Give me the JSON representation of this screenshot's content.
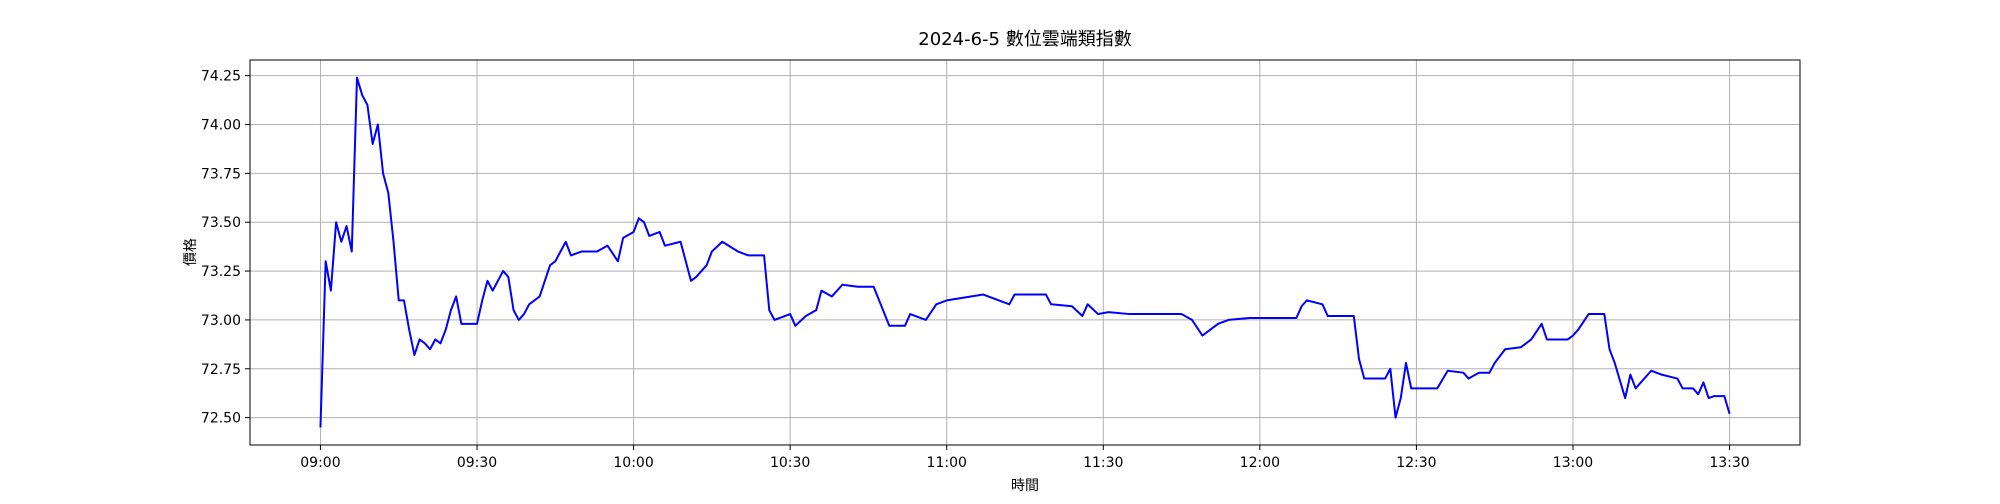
{
  "chart_data": {
    "type": "line",
    "title": "2024-6-5 數位雲端類指數",
    "x_label": "時間",
    "y_label": "價格",
    "x": [
      "09:00",
      "09:01",
      "09:02",
      "09:03",
      "09:04",
      "09:05",
      "09:06",
      "09:07",
      "09:08",
      "09:09",
      "09:10",
      "09:11",
      "09:12",
      "09:13",
      "09:14",
      "09:15",
      "09:16",
      "09:17",
      "09:18",
      "09:19",
      "09:20",
      "09:21",
      "09:22",
      "09:23",
      "09:24",
      "09:25",
      "09:26",
      "09:27",
      "09:30",
      "09:31",
      "09:32",
      "09:33",
      "09:35",
      "09:36",
      "09:37",
      "09:38",
      "09:39",
      "09:40",
      "09:42",
      "09:44",
      "09:45",
      "09:47",
      "09:48",
      "09:50",
      "09:53",
      "09:55",
      "09:57",
      "09:58",
      "10:00",
      "10:01",
      "10:02",
      "10:03",
      "10:05",
      "10:06",
      "10:09",
      "10:11",
      "10:12",
      "10:14",
      "10:15",
      "10:17",
      "10:20",
      "10:22",
      "10:25",
      "10:26",
      "10:27",
      "10:30",
      "10:31",
      "10:33",
      "10:35",
      "10:36",
      "10:38",
      "10:40",
      "10:43",
      "10:46",
      "10:49",
      "10:52",
      "10:53",
      "10:56",
      "10:58",
      "11:00",
      "11:07",
      "11:12",
      "11:13",
      "11:19",
      "11:20",
      "11:24",
      "11:26",
      "11:27",
      "11:29",
      "11:31",
      "11:35",
      "11:45",
      "11:47",
      "11:49",
      "11:52",
      "11:54",
      "11:58",
      "12:07",
      "12:08",
      "12:09",
      "12:12",
      "12:13",
      "12:18",
      "12:19",
      "12:20",
      "12:24",
      "12:25",
      "12:26",
      "12:27",
      "12:28",
      "12:29",
      "12:34",
      "12:36",
      "12:39",
      "12:40",
      "12:42",
      "12:44",
      "12:45",
      "12:47",
      "12:50",
      "12:52",
      "12:54",
      "12:55",
      "12:59",
      "13:00",
      "13:01",
      "13:03",
      "13:06",
      "13:07",
      "13:08",
      "13:10",
      "13:11",
      "13:12",
      "13:15",
      "13:17",
      "13:20",
      "13:21",
      "13:23",
      "13:24",
      "13:25",
      "13:26",
      "13:27",
      "13:29",
      "13:30"
    ],
    "series": [
      {
        "name": "價格",
        "color": "#0000ff",
        "values": [
          72.45,
          73.3,
          73.15,
          73.5,
          73.4,
          73.48,
          73.35,
          74.24,
          74.15,
          74.1,
          73.9,
          74.0,
          73.75,
          73.65,
          73.4,
          73.1,
          73.1,
          72.95,
          72.82,
          72.9,
          72.88,
          72.85,
          72.9,
          72.88,
          72.95,
          73.05,
          73.12,
          72.98,
          72.98,
          73.1,
          73.2,
          73.15,
          73.25,
          73.22,
          73.05,
          73.0,
          73.03,
          73.08,
          73.12,
          73.28,
          73.3,
          73.4,
          73.33,
          73.35,
          73.35,
          73.38,
          73.3,
          73.42,
          73.45,
          73.52,
          73.5,
          73.43,
          73.45,
          73.38,
          73.4,
          73.2,
          73.22,
          73.28,
          73.35,
          73.4,
          73.35,
          73.33,
          73.33,
          73.05,
          73.0,
          73.03,
          72.97,
          73.02,
          73.05,
          73.15,
          73.12,
          73.18,
          73.17,
          73.17,
          72.97,
          72.97,
          73.03,
          73.0,
          73.08,
          73.1,
          73.13,
          73.08,
          73.13,
          73.13,
          73.08,
          73.07,
          73.02,
          73.08,
          73.03,
          73.04,
          73.03,
          73.03,
          73.0,
          72.92,
          72.98,
          73.0,
          73.01,
          73.01,
          73.07,
          73.1,
          73.08,
          73.02,
          73.02,
          72.8,
          72.7,
          72.7,
          72.75,
          72.5,
          72.6,
          72.78,
          72.65,
          72.65,
          72.74,
          72.73,
          72.7,
          72.73,
          72.73,
          72.78,
          72.85,
          72.86,
          72.9,
          72.98,
          72.9,
          72.9,
          72.92,
          72.95,
          73.03,
          73.03,
          72.85,
          72.78,
          72.6,
          72.72,
          72.65,
          72.74,
          72.72,
          72.7,
          72.65,
          72.65,
          72.62,
          72.68,
          72.6,
          72.61,
          72.61,
          72.52
        ]
      }
    ],
    "xlim": [
      "08:46:30",
      "13:43:30"
    ],
    "xticks": [
      "09:00",
      "09:30",
      "10:00",
      "10:30",
      "11:00",
      "11:30",
      "12:00",
      "12:30",
      "13:00",
      "13:30"
    ],
    "ylim": [
      72.36,
      74.33
    ],
    "yticks": [
      {
        "value": 72.5,
        "label": "72.50"
      },
      72.75,
      {
        "value": 73,
        "label": "73.00"
      },
      73.25,
      {
        "value": 73.5,
        "label": "73.50"
      },
      73.75,
      {
        "value": 74,
        "label": "74.00"
      },
      74.25
    ],
    "grid": true
  }
}
